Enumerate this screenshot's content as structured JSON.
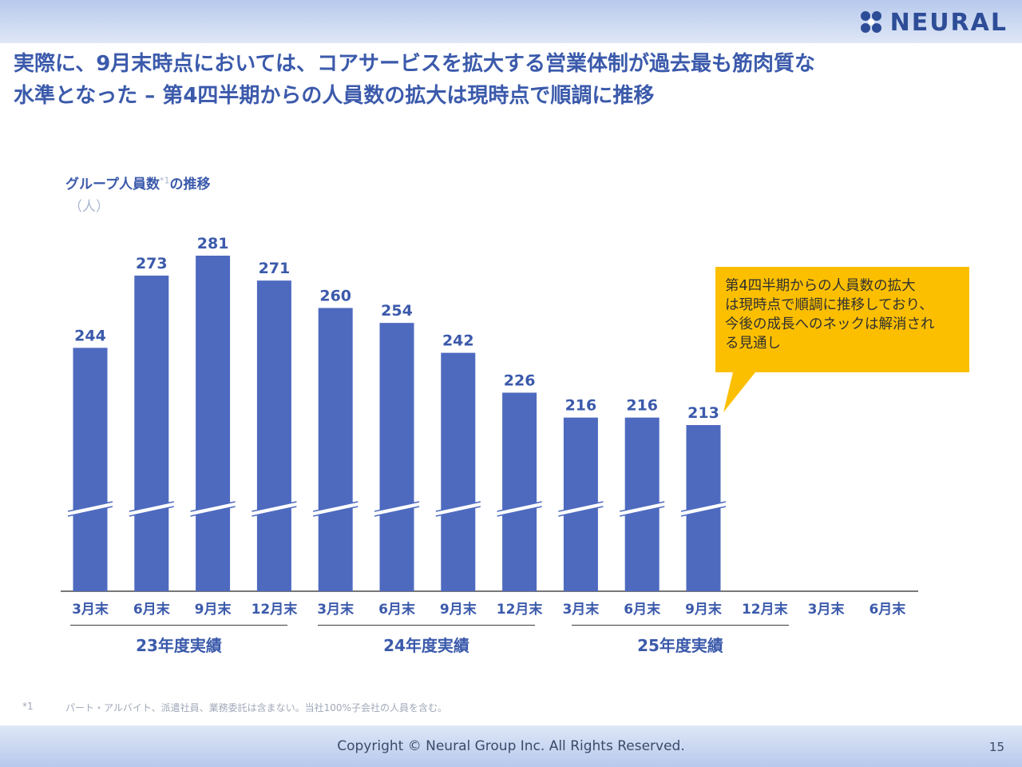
{
  "header": {
    "logo_text": "NEURAL",
    "title_line1": "実際に、9月末時点においては、コアサービスを拡大する営業体制が過去最も筋肉質な",
    "title_line2": "水準となった – 第4四半期からの人員数の拡大は現時点で順調に推移"
  },
  "chart_header": {
    "title": "グループ人員数",
    "note_mark": "*1",
    "title_suffix": "の推移",
    "unit": "（人）"
  },
  "chart_data": {
    "type": "bar",
    "title": "グループ人員数の推移",
    "ylabel": "（人）",
    "categories": [
      "3月末",
      "6月末",
      "9月末",
      "12月末",
      "3月末",
      "6月末",
      "9月末",
      "12月末",
      "3月末",
      "6月末",
      "9月末",
      "12月末",
      "3月末",
      "6月末"
    ],
    "values": [
      244,
      273,
      281,
      271,
      260,
      254,
      242,
      226,
      216,
      216,
      213,
      null,
      null,
      null
    ],
    "axis_break": true,
    "groups": [
      {
        "label": "23年度実績",
        "categories": [
          0,
          3
        ]
      },
      {
        "label": "24年度実績",
        "categories": [
          4,
          7
        ]
      },
      {
        "label": "25年度実績",
        "categories": [
          8,
          11
        ]
      }
    ],
    "colors": {
      "bar": "#4e6abf",
      "label": "#3b5aab",
      "callout": "#fcbf00"
    }
  },
  "callout": {
    "text": "第4四半期からの人員数の拡大\nは現時点で順調に推移しており、\n今後の成長へのネックは解消され\nる見通し"
  },
  "footnote": {
    "mark": "*1",
    "text": "パート・アルバイト、派遣社員、業務委託は含まない。当社100%子会社の人員を含む。"
  },
  "footer": {
    "copyright": "Copyright © Neural Group Inc. All Rights Reserved.",
    "page": "15"
  }
}
